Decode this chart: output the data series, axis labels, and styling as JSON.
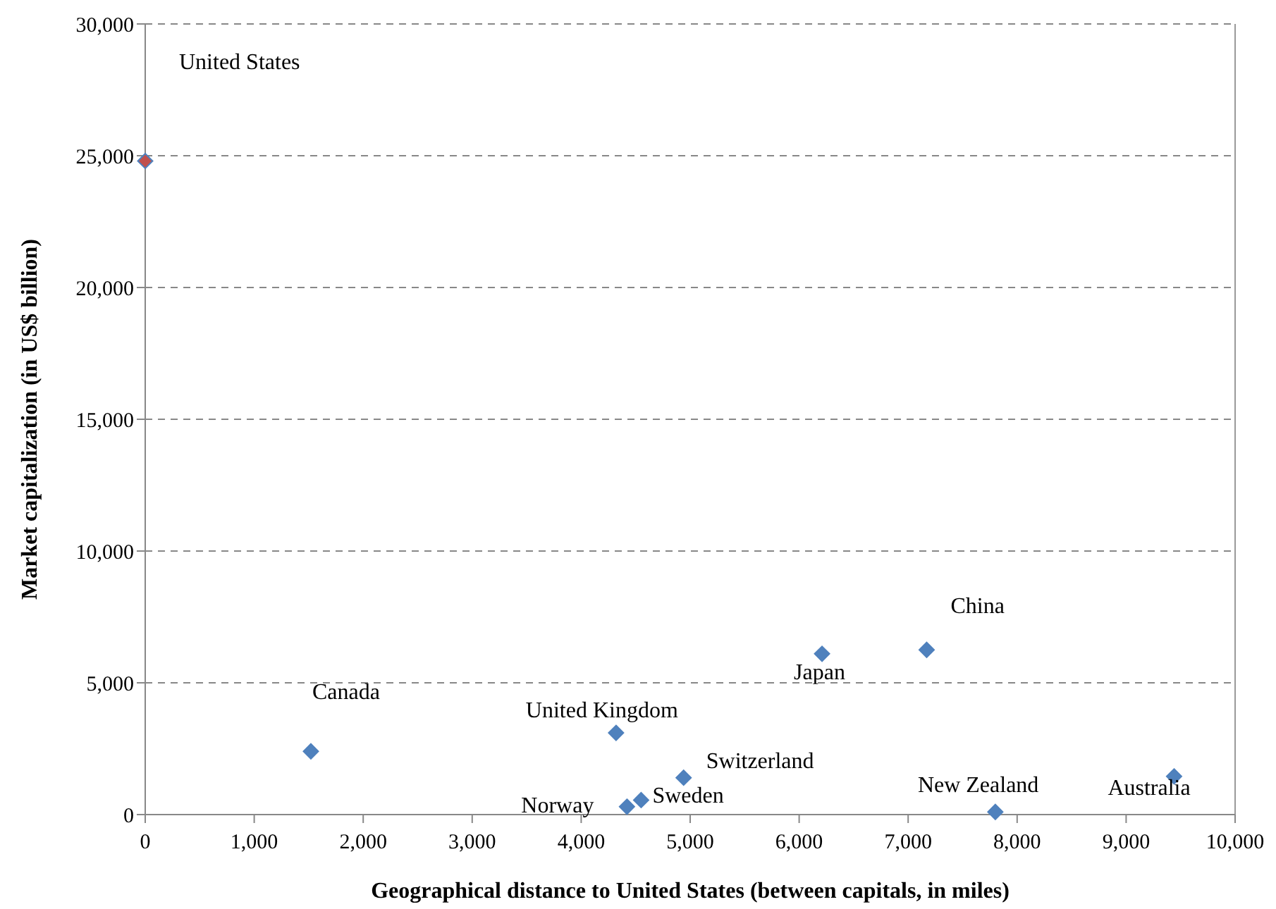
{
  "chart_data": {
    "type": "scatter",
    "xlabel": "Geographical distance to United States (between capitals, in miles)",
    "ylabel": "Market capitalization (in US$ billion)",
    "x": [
      0,
      1520,
      4320,
      4420,
      4550,
      4940,
      6210,
      7170,
      7800,
      9440
    ],
    "values": [
      24800,
      2400,
      3100,
      300,
      550,
      1400,
      6100,
      6250,
      100,
      1450
    ],
    "colors": [
      "#c0504d",
      "#4f81bd",
      "#4f81bd",
      "#4f81bd",
      "#4f81bd",
      "#4f81bd",
      "#4f81bd",
      "#4f81bd",
      "#4f81bd",
      "#4f81bd"
    ],
    "marker": "diamond",
    "xlim": [
      0,
      10000
    ],
    "xticks": [
      {
        "value": 0,
        "label": "0"
      },
      {
        "value": 1000,
        "label": "1,000"
      },
      {
        "value": 2000,
        "label": "2,000"
      },
      {
        "value": 3000,
        "label": "3,000"
      },
      {
        "value": 4000,
        "label": "4,000"
      },
      {
        "value": 5000,
        "label": "5,000"
      },
      {
        "value": 6000,
        "label": "6,000"
      },
      {
        "value": 7000,
        "label": "7,000"
      },
      {
        "value": 8000,
        "label": "8,000"
      },
      {
        "value": 9000,
        "label": "9,000"
      },
      {
        "value": 10000,
        "label": "10,000"
      }
    ],
    "ylim": [
      0,
      30000
    ],
    "yticks": [
      {
        "value": 0,
        "label": "0"
      },
      {
        "value": 5000,
        "label": "5,000"
      },
      {
        "value": 10000,
        "label": "10,000"
      },
      {
        "value": 15000,
        "label": "15,000"
      },
      {
        "value": 20000,
        "label": "20,000"
      },
      {
        "value": 25000,
        "label": "25,000"
      },
      {
        "value": 30000,
        "label": "30,000"
      }
    ],
    "grid": "y",
    "annotations": [
      "United States",
      {
        "text": "Canada",
        "x": 1520,
        "y": 2400
      },
      {
        "text": "United Kingdom",
        "x": 4320,
        "y": 3100
      },
      {
        "text": "Norway",
        "x": 4420,
        "y": 300
      },
      {
        "text": "Sweden",
        "x": 4550,
        "y": 550
      },
      {
        "text": "Switzerland",
        "x": 4940,
        "y": 1400
      },
      {
        "text": "Japan",
        "x": 6210,
        "y": 6100
      },
      {
        "text": "China",
        "x": 7170,
        "y": 6250
      },
      {
        "text": "New Zealand",
        "x": 7800,
        "y": 100
      },
      {
        "text": "Australia",
        "x": 9440,
        "y": 1450
      }
    ]
  }
}
